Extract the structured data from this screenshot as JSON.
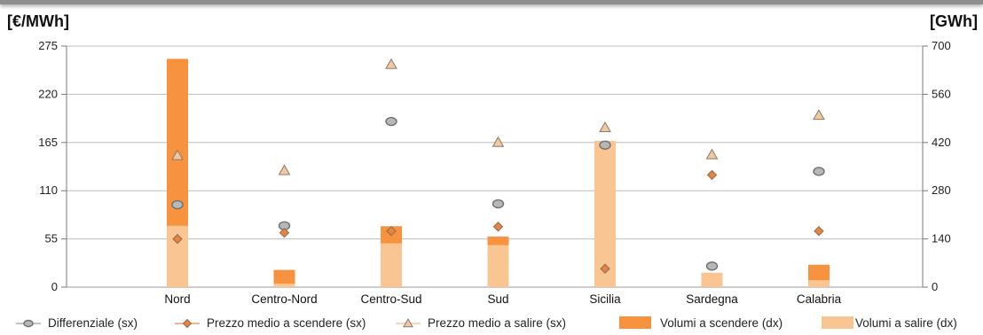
{
  "chart_data": {
    "type": "bar",
    "categories": [
      "Nord",
      "Centro-Nord",
      "Centro-Sud",
      "Sud",
      "Sicilia",
      "Sardegna",
      "Calabria"
    ],
    "left_axis": {
      "label": "[€/MWh]",
      "ylim": [
        0,
        275
      ],
      "ticks": [
        "0",
        "55",
        "110",
        "165",
        "220",
        "275"
      ]
    },
    "right_axis": {
      "label": "[GWh]",
      "ylim": [
        0,
        700
      ],
      "ticks": [
        "0",
        "140",
        "280",
        "420",
        "560",
        "700"
      ]
    },
    "grid": true,
    "legend_position": "bottom",
    "series": [
      {
        "name": "Differenziale (sx)",
        "type": "scatter",
        "marker": "circle",
        "axis": "left",
        "color": "#b7b7b7",
        "values": [
          94,
          70,
          189,
          95,
          162,
          24,
          132
        ]
      },
      {
        "name": "Prezzo medio a scendere (sx)",
        "type": "scatter",
        "marker": "diamond",
        "axis": "left",
        "color": "#e8843e",
        "values": [
          55,
          62,
          64,
          69,
          21,
          128,
          64
        ]
      },
      {
        "name": "Prezzo medio a salire (sx)",
        "type": "scatter",
        "marker": "triangle",
        "axis": "left",
        "color": "#f2c8a2",
        "values": [
          150,
          133,
          254,
          165,
          182,
          151,
          196
        ]
      },
      {
        "name": "Volumi a scendere (dx)",
        "type": "bar",
        "axis": "right",
        "color": "#f7933f",
        "values": [
          485,
          40,
          50,
          25,
          0,
          0,
          45
        ]
      },
      {
        "name": "Volumi a salire (dx)",
        "type": "bar",
        "axis": "right",
        "color": "#f9c592",
        "values": [
          178,
          10,
          127,
          122,
          425,
          42,
          20
        ]
      }
    ]
  }
}
